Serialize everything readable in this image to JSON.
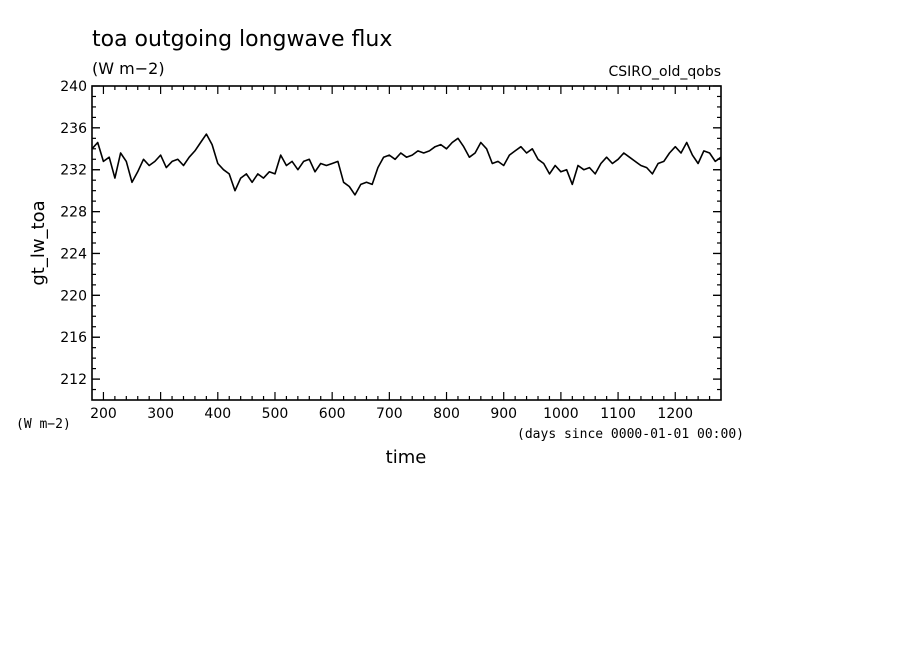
{
  "chart_data": {
    "type": "line",
    "title": "toa outgoing longwave flux",
    "units_label": "(W m−2)",
    "dataset_label": "CSIRO_old_qobs",
    "ylabel": "gt_lw_toa",
    "yunits_corner": "(W m−2)",
    "xlabel": "time",
    "xunits_note": "(days since 0000-01-01 00:00)",
    "xlim": [
      180,
      1280
    ],
    "ylim": [
      210,
      240
    ],
    "xticks": [
      200,
      300,
      400,
      500,
      600,
      700,
      800,
      900,
      1000,
      1100,
      1200
    ],
    "yticks": [
      212,
      216,
      220,
      224,
      228,
      232,
      236,
      240
    ],
    "grid": false,
    "series": [
      {
        "color": "#000000",
        "x": [
          180,
          190,
          200,
          210,
          220,
          230,
          240,
          250,
          260,
          270,
          280,
          290,
          300,
          310,
          320,
          330,
          340,
          350,
          360,
          370,
          380,
          390,
          400,
          410,
          420,
          430,
          440,
          450,
          460,
          470,
          480,
          490,
          500,
          510,
          520,
          530,
          540,
          550,
          560,
          570,
          580,
          590,
          600,
          610,
          620,
          630,
          640,
          650,
          660,
          670,
          680,
          690,
          700,
          710,
          720,
          730,
          740,
          750,
          760,
          770,
          780,
          790,
          800,
          810,
          820,
          830,
          840,
          850,
          860,
          870,
          880,
          890,
          900,
          910,
          920,
          930,
          940,
          950,
          960,
          970,
          980,
          990,
          1000,
          1010,
          1020,
          1030,
          1040,
          1050,
          1060,
          1070,
          1080,
          1090,
          1100,
          1110,
          1120,
          1130,
          1140,
          1150,
          1160,
          1170,
          1180,
          1190,
          1200,
          1210,
          1220,
          1230,
          1240,
          1250,
          1260,
          1270,
          1280
        ],
        "y": [
          234.0,
          234.6,
          232.8,
          233.2,
          231.2,
          233.6,
          232.8,
          230.8,
          231.8,
          233.0,
          232.4,
          232.8,
          233.4,
          232.2,
          232.8,
          233.0,
          232.4,
          233.2,
          233.8,
          234.6,
          235.4,
          234.4,
          232.6,
          232.0,
          231.6,
          230.0,
          231.2,
          231.6,
          230.8,
          231.6,
          231.2,
          231.8,
          231.6,
          233.4,
          232.4,
          232.8,
          232.0,
          232.8,
          233.0,
          231.8,
          232.6,
          232.4,
          232.6,
          232.8,
          230.8,
          230.4,
          229.6,
          230.6,
          230.8,
          230.6,
          232.2,
          233.2,
          233.4,
          233.0,
          233.6,
          233.2,
          233.4,
          233.8,
          233.6,
          233.8,
          234.2,
          234.4,
          234.0,
          234.6,
          235.0,
          234.2,
          233.2,
          233.6,
          234.6,
          234.0,
          232.6,
          232.8,
          232.4,
          233.4,
          233.8,
          234.2,
          233.6,
          234.0,
          233.0,
          232.6,
          231.6,
          232.4,
          231.8,
          232.0,
          230.6,
          232.4,
          232.0,
          232.2,
          231.6,
          232.6,
          233.2,
          232.6,
          233.0,
          233.6,
          233.2,
          232.8,
          232.4,
          232.2,
          231.6,
          232.6,
          232.8,
          233.6,
          234.2,
          233.6,
          234.6,
          233.4,
          232.6,
          233.8,
          233.6,
          232.8,
          233.2
        ]
      }
    ]
  }
}
